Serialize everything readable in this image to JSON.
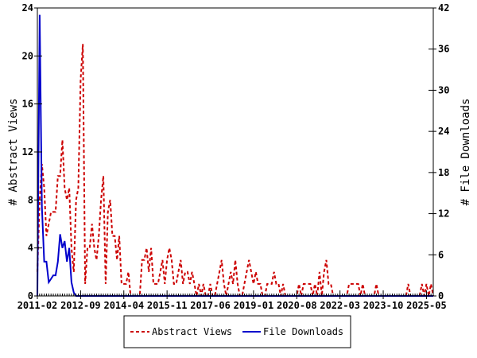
{
  "chart_data": {
    "type": "line",
    "xlabel": "",
    "ylabel": "# Abstract Views",
    "y2label": "# File Downloads",
    "x_start": "2011-02",
    "x_interval": "month",
    "x_tick_labels": [
      "2011-02",
      "2012-09",
      "2014-04",
      "2015-11",
      "2017-06",
      "2019-01",
      "2020-08",
      "2022-03",
      "2023-10",
      "2025-05"
    ],
    "ylim": [
      0,
      24
    ],
    "y_ticks": [
      0,
      4,
      8,
      12,
      16,
      20,
      24
    ],
    "y2lim": [
      0,
      42
    ],
    "y2_ticks": [
      0,
      6,
      12,
      18,
      24,
      30,
      36,
      42
    ],
    "grid": false,
    "legend_position": "bottom",
    "series": [
      {
        "name": "Abstract Views",
        "axis": "left",
        "color": "#cc0000",
        "style": "dashed",
        "values": [
          2,
          8,
          11,
          9,
          5,
          6,
          7,
          7,
          7,
          10,
          10,
          13,
          9,
          8,
          9,
          4,
          2,
          8,
          9,
          18,
          21,
          1,
          4,
          4,
          6,
          4,
          3,
          5,
          8,
          10,
          1,
          7,
          8,
          5,
          5,
          3,
          5,
          1,
          1,
          1,
          2,
          0,
          0,
          0,
          0,
          0,
          3,
          3,
          4,
          2,
          4,
          1,
          1,
          1,
          2,
          3,
          1,
          3,
          4,
          3,
          1,
          1,
          2,
          3,
          1,
          2,
          2,
          1,
          2,
          1,
          0,
          1,
          0,
          1,
          0,
          0,
          1,
          0,
          0,
          1,
          2,
          3,
          1,
          0,
          1,
          2,
          1,
          3,
          1,
          0,
          0,
          1,
          2,
          3,
          2,
          1,
          2,
          1,
          1,
          0,
          0,
          1,
          1,
          1,
          2,
          1,
          1,
          0,
          1,
          0,
          0,
          0,
          0,
          0,
          0,
          1,
          0,
          1,
          1,
          1,
          1,
          0,
          1,
          0,
          2,
          0,
          2,
          3,
          1,
          1,
          0,
          0,
          0,
          0,
          0,
          0,
          0,
          1,
          1,
          1,
          1,
          1,
          0,
          1,
          0,
          0,
          0,
          0,
          0,
          1,
          0,
          0,
          0,
          0,
          0,
          0,
          0,
          0,
          0,
          0,
          0,
          0,
          0,
          1,
          0,
          0,
          0,
          0,
          0,
          1,
          0,
          1,
          0,
          1,
          0
        ]
      },
      {
        "name": "File Downloads",
        "axis": "right",
        "color": "#0000cc",
        "style": "solid",
        "values": [
          0,
          41,
          13,
          5,
          5,
          2,
          2.5,
          3,
          3,
          5,
          9,
          7,
          8,
          5,
          7,
          2,
          0.5,
          0,
          0,
          0,
          0,
          0,
          0,
          0,
          0,
          0,
          0,
          0,
          0,
          0,
          0,
          0,
          0,
          0,
          0,
          0,
          0,
          0,
          0,
          0,
          0,
          0,
          0,
          0,
          0,
          0,
          0,
          0,
          0,
          0,
          0,
          0,
          0,
          0,
          0,
          0,
          0,
          0,
          0,
          0,
          0,
          0,
          0,
          0,
          0,
          0,
          0,
          0,
          0,
          0,
          0,
          0,
          0,
          0,
          0,
          0,
          0,
          0,
          0,
          0,
          0,
          0,
          0,
          0,
          0,
          0,
          0,
          0,
          0,
          0,
          0,
          0,
          0,
          0,
          0,
          0,
          0,
          0,
          0,
          0,
          0,
          0,
          0,
          0,
          0,
          0,
          0,
          0,
          0,
          0,
          0,
          0,
          0,
          0,
          0,
          0,
          0,
          0,
          0,
          0,
          0,
          0,
          0,
          0,
          0,
          0,
          0,
          0,
          0,
          0,
          0,
          0,
          0,
          0,
          0,
          0,
          0,
          0,
          0,
          0,
          0,
          0,
          0,
          0,
          0,
          0,
          0,
          0,
          0,
          0,
          0,
          0,
          0,
          0,
          0,
          0,
          0,
          0,
          0,
          0,
          0,
          0,
          0,
          0,
          0,
          0,
          0,
          0,
          0,
          0,
          0,
          0,
          0,
          0,
          0
        ]
      }
    ]
  }
}
